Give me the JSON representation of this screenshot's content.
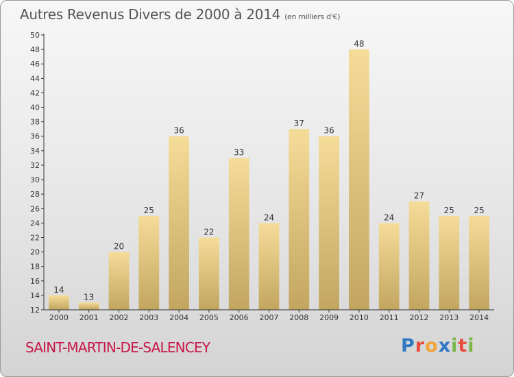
{
  "header": {
    "title": "Autres Revenus Divers de 2000 à 2014",
    "unit": "(en milliers d'€)"
  },
  "footer": {
    "commune": "SAINT-MARTIN-DE-SALENCEY",
    "logo_letters": [
      "P",
      "r",
      "o",
      "x",
      "i",
      "t",
      "i"
    ]
  },
  "colors": {
    "bar_top": "#f5dc98",
    "bar_bottom": "#c2a660",
    "commune": "#c7174a"
  },
  "chart_data": {
    "type": "bar",
    "categories": [
      "2000",
      "2001",
      "2002",
      "2003",
      "2004",
      "2005",
      "2006",
      "2007",
      "2008",
      "2009",
      "2010",
      "2011",
      "2012",
      "2013",
      "2014"
    ],
    "values": [
      14,
      13,
      20,
      25,
      36,
      22,
      33,
      24,
      37,
      36,
      48,
      24,
      27,
      25,
      25
    ],
    "title": "Autres Revenus Divers de 2000 à 2014",
    "xlabel": "",
    "ylabel": "",
    "ylim": [
      12,
      50
    ],
    "yticks": [
      12,
      14,
      16,
      18,
      20,
      22,
      24,
      26,
      28,
      30,
      32,
      34,
      36,
      38,
      40,
      42,
      44,
      46,
      48,
      50
    ],
    "grid": false,
    "data_labels": true
  }
}
